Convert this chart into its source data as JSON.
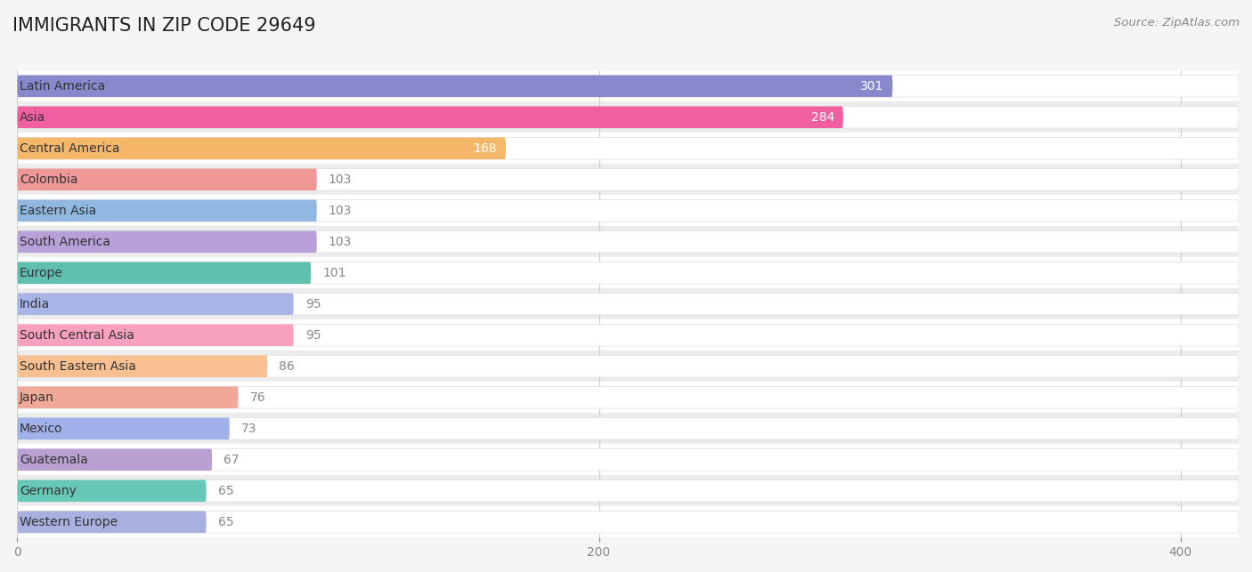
{
  "title": "IMMIGRANTS IN ZIP CODE 29649",
  "source": "Source: ZipAtlas.com",
  "categories": [
    "Latin America",
    "Asia",
    "Central America",
    "Colombia",
    "Eastern Asia",
    "South America",
    "Europe",
    "India",
    "South Central Asia",
    "South Eastern Asia",
    "Japan",
    "Mexico",
    "Guatemala",
    "Germany",
    "Western Europe"
  ],
  "values": [
    301,
    284,
    168,
    103,
    103,
    103,
    101,
    95,
    95,
    86,
    76,
    73,
    67,
    65,
    65
  ],
  "bar_colors": [
    "#8888cc",
    "#f060a0",
    "#f5b86a",
    "#f09898",
    "#90b8e0",
    "#b8a0d8",
    "#60c0b0",
    "#a8b4e8",
    "#f8a0c0",
    "#f8c090",
    "#f0a898",
    "#a0b0e8",
    "#b8a0d0",
    "#68c8b8",
    "#a8b0e0"
  ],
  "xlim_data": 420,
  "xticks": [
    0,
    200,
    400
  ],
  "bar_height": 0.7,
  "fig_bg": "#f5f5f5",
  "row_even_bg": "#ffffff",
  "row_odd_bg": "#ececec",
  "pill_bg": "#ffffff",
  "label_color": "#333333",
  "value_color_inside": "#ffffff",
  "value_color_outside": "#888888",
  "title_fontsize": 15,
  "label_fontsize": 10,
  "value_fontsize": 10,
  "source_fontsize": 9.5,
  "threshold_inside": 150
}
